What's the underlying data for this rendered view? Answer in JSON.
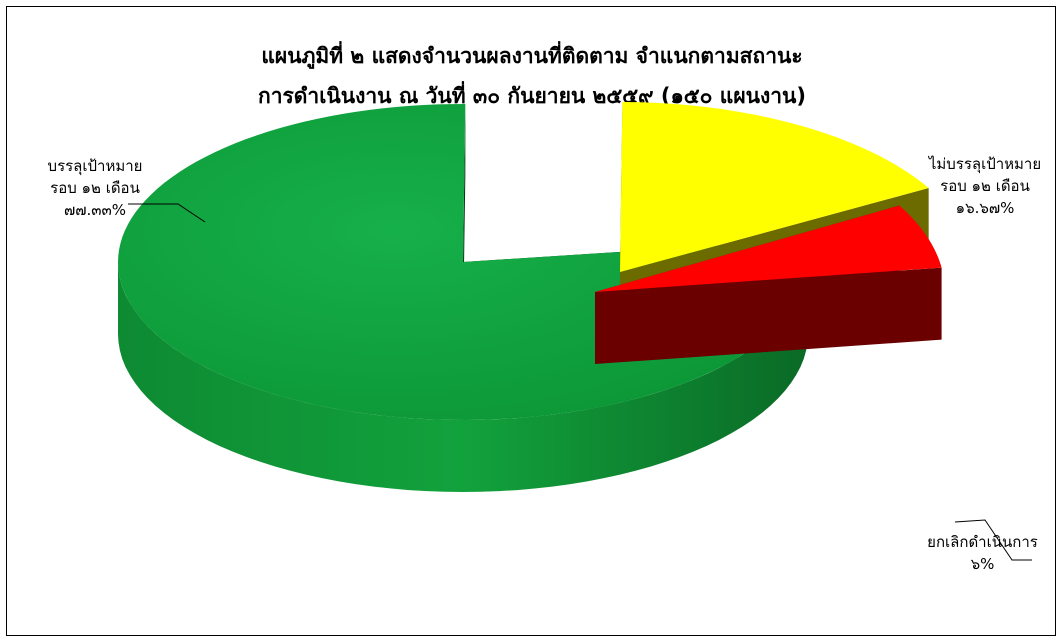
{
  "chart_data": {
    "type": "pie",
    "title_line1": "แผนภูมิที่ ๒ แสดงจำนวนผลงานที่ติดตาม จำแนกตามสถานะ",
    "title_line2": "การดำเนินงาน ณ วันที่ ๓๐ กันยายน ๒๕๕๙ (๑๕๐ แผนงาน)",
    "slices": [
      {
        "name_line1": "บรรลุเป้าหมาย",
        "name_line2": "รอบ ๑๒ เดือน",
        "percent_label": "๗๗.๓๓%",
        "value": 77.33,
        "color": "#0f9c3a"
      },
      {
        "name_line1": "ไม่บรรลุเป้าหมาย",
        "name_line2": "รอบ ๑๒ เดือน",
        "percent_label": "๑๖.๖๗%",
        "value": 16.67,
        "color": "#ffff00"
      },
      {
        "name_line1": "ยกเลิกดำเนินการ",
        "name_line2": "",
        "percent_label": "๖%",
        "value": 6.0,
        "color": "#ff0000"
      }
    ]
  }
}
